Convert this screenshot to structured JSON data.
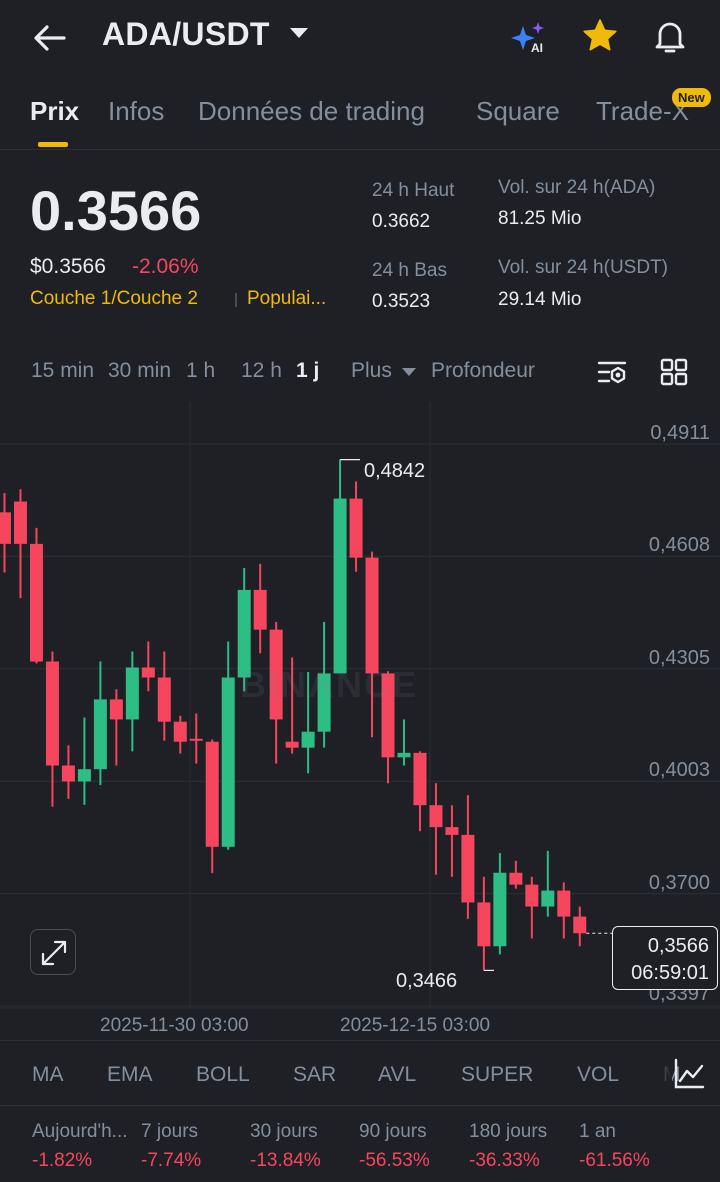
{
  "header": {
    "pair": "ADA/USDT",
    "ai_badge": "AI"
  },
  "tabs": [
    {
      "label": "Prix",
      "active": true
    },
    {
      "label": "Infos"
    },
    {
      "label": "Données de trading"
    },
    {
      "label": "Square"
    },
    {
      "label": "Trade-X",
      "badge": "New"
    }
  ],
  "price": {
    "last": "0.3566",
    "usd": "$0.3566",
    "change": "-2.06%",
    "tags": [
      "Couche 1/Couche 2",
      "Populai..."
    ]
  },
  "stats": {
    "high_label": "24 h Haut",
    "high_value": "0.3662",
    "low_label": "24 h Bas",
    "low_value": "0.3523",
    "vol_base_label": "Vol. sur 24 h(ADA)",
    "vol_base_value": "81.25 Mio",
    "vol_quote_label": "Vol. sur 24 h(USDT)",
    "vol_quote_value": "29.14 Mio"
  },
  "intervals": {
    "items": [
      "15 min",
      "30 min",
      "1 h",
      "12 h",
      "1 j"
    ],
    "active": "1 j",
    "more_label": "Plus",
    "depth_label": "Profondeur"
  },
  "chart_data": {
    "type": "candlestick",
    "watermark": "BINANCE",
    "y_ticks": [
      "0,4911",
      "0,4608",
      "0,4305",
      "0,4003",
      "0,3700",
      "0,3397"
    ],
    "x_ticks": [
      "2025-11-30 03:00",
      "2025-12-15 03:00"
    ],
    "ylim": [
      0.3397,
      0.4911
    ],
    "high_marker": "0,4842",
    "low_marker": "0,3466",
    "last_price": "0,3566",
    "countdown": "06:59:01",
    "colors": {
      "up": "#2ebd85",
      "down": "#f6465d"
    },
    "candles": [
      {
        "o": 0.47,
        "h": 0.4752,
        "l": 0.4538,
        "c": 0.4615
      },
      {
        "o": 0.4729,
        "h": 0.4762,
        "l": 0.4469,
        "c": 0.4615
      },
      {
        "o": 0.4615,
        "h": 0.4658,
        "l": 0.4293,
        "c": 0.4298
      },
      {
        "o": 0.4298,
        "h": 0.4325,
        "l": 0.3907,
        "c": 0.4018
      },
      {
        "o": 0.4018,
        "h": 0.4072,
        "l": 0.3928,
        "c": 0.3975
      },
      {
        "o": 0.3975,
        "h": 0.4147,
        "l": 0.3912,
        "c": 0.4008
      },
      {
        "o": 0.4008,
        "h": 0.4298,
        "l": 0.3965,
        "c": 0.4196
      },
      {
        "o": 0.4196,
        "h": 0.4223,
        "l": 0.4018,
        "c": 0.4142
      },
      {
        "o": 0.4142,
        "h": 0.4325,
        "l": 0.4056,
        "c": 0.4282
      },
      {
        "o": 0.4282,
        "h": 0.4352,
        "l": 0.4218,
        "c": 0.4255
      },
      {
        "o": 0.4255,
        "h": 0.4325,
        "l": 0.4085,
        "c": 0.4136
      },
      {
        "o": 0.4136,
        "h": 0.4152,
        "l": 0.405,
        "c": 0.4082
      },
      {
        "o": 0.409,
        "h": 0.4158,
        "l": 0.4023,
        "c": 0.4088
      },
      {
        "o": 0.4082,
        "h": 0.4088,
        "l": 0.3728,
        "c": 0.3799
      },
      {
        "o": 0.3799,
        "h": 0.4352,
        "l": 0.3791,
        "c": 0.4255
      },
      {
        "o": 0.4255,
        "h": 0.455,
        "l": 0.4218,
        "c": 0.4491
      },
      {
        "o": 0.4491,
        "h": 0.4561,
        "l": 0.432,
        "c": 0.4384
      },
      {
        "o": 0.4384,
        "h": 0.4405,
        "l": 0.4023,
        "c": 0.4142
      },
      {
        "o": 0.4082,
        "h": 0.4309,
        "l": 0.405,
        "c": 0.4066
      },
      {
        "o": 0.4066,
        "h": 0.427,
        "l": 0.3997,
        "c": 0.4109
      },
      {
        "o": 0.4109,
        "h": 0.4405,
        "l": 0.4066,
        "c": 0.4266
      },
      {
        "o": 0.4266,
        "h": 0.4842,
        "l": 0.4266,
        "c": 0.4737
      },
      {
        "o": 0.4737,
        "h": 0.4783,
        "l": 0.454,
        "c": 0.4578
      },
      {
        "o": 0.4578,
        "h": 0.4594,
        "l": 0.4094,
        "c": 0.4266
      },
      {
        "o": 0.4266,
        "h": 0.4272,
        "l": 0.397,
        "c": 0.404
      },
      {
        "o": 0.404,
        "h": 0.4142,
        "l": 0.4018,
        "c": 0.4052
      },
      {
        "o": 0.4052,
        "h": 0.4056,
        "l": 0.3841,
        "c": 0.3911
      },
      {
        "o": 0.3911,
        "h": 0.397,
        "l": 0.3724,
        "c": 0.3852
      },
      {
        "o": 0.3852,
        "h": 0.3911,
        "l": 0.3718,
        "c": 0.3831
      },
      {
        "o": 0.3831,
        "h": 0.3938,
        "l": 0.3605,
        "c": 0.3649
      },
      {
        "o": 0.3649,
        "h": 0.3718,
        "l": 0.3466,
        "c": 0.3531
      },
      {
        "o": 0.3531,
        "h": 0.3782,
        "l": 0.3509,
        "c": 0.3729
      },
      {
        "o": 0.3729,
        "h": 0.3761,
        "l": 0.3686,
        "c": 0.3697
      },
      {
        "o": 0.3697,
        "h": 0.3718,
        "l": 0.3552,
        "c": 0.3638
      },
      {
        "o": 0.3638,
        "h": 0.3788,
        "l": 0.3611,
        "c": 0.3681
      },
      {
        "o": 0.3681,
        "h": 0.3703,
        "l": 0.3552,
        "c": 0.3611
      },
      {
        "o": 0.3611,
        "h": 0.3638,
        "l": 0.3531,
        "c": 0.3566
      }
    ]
  },
  "indicators": [
    "MA",
    "EMA",
    "BOLL",
    "SAR",
    "AVL",
    "SUPER",
    "VOL",
    "M"
  ],
  "performance": [
    {
      "label": "Aujourd'h...",
      "value": "-1.82%"
    },
    {
      "label": "7 jours",
      "value": "-7.74%"
    },
    {
      "label": "30 jours",
      "value": "-13.84%"
    },
    {
      "label": "90 jours",
      "value": "-56.53%"
    },
    {
      "label": "180 jours",
      "value": "-36.33%"
    },
    {
      "label": "1 an",
      "value": "-61.56%"
    }
  ]
}
